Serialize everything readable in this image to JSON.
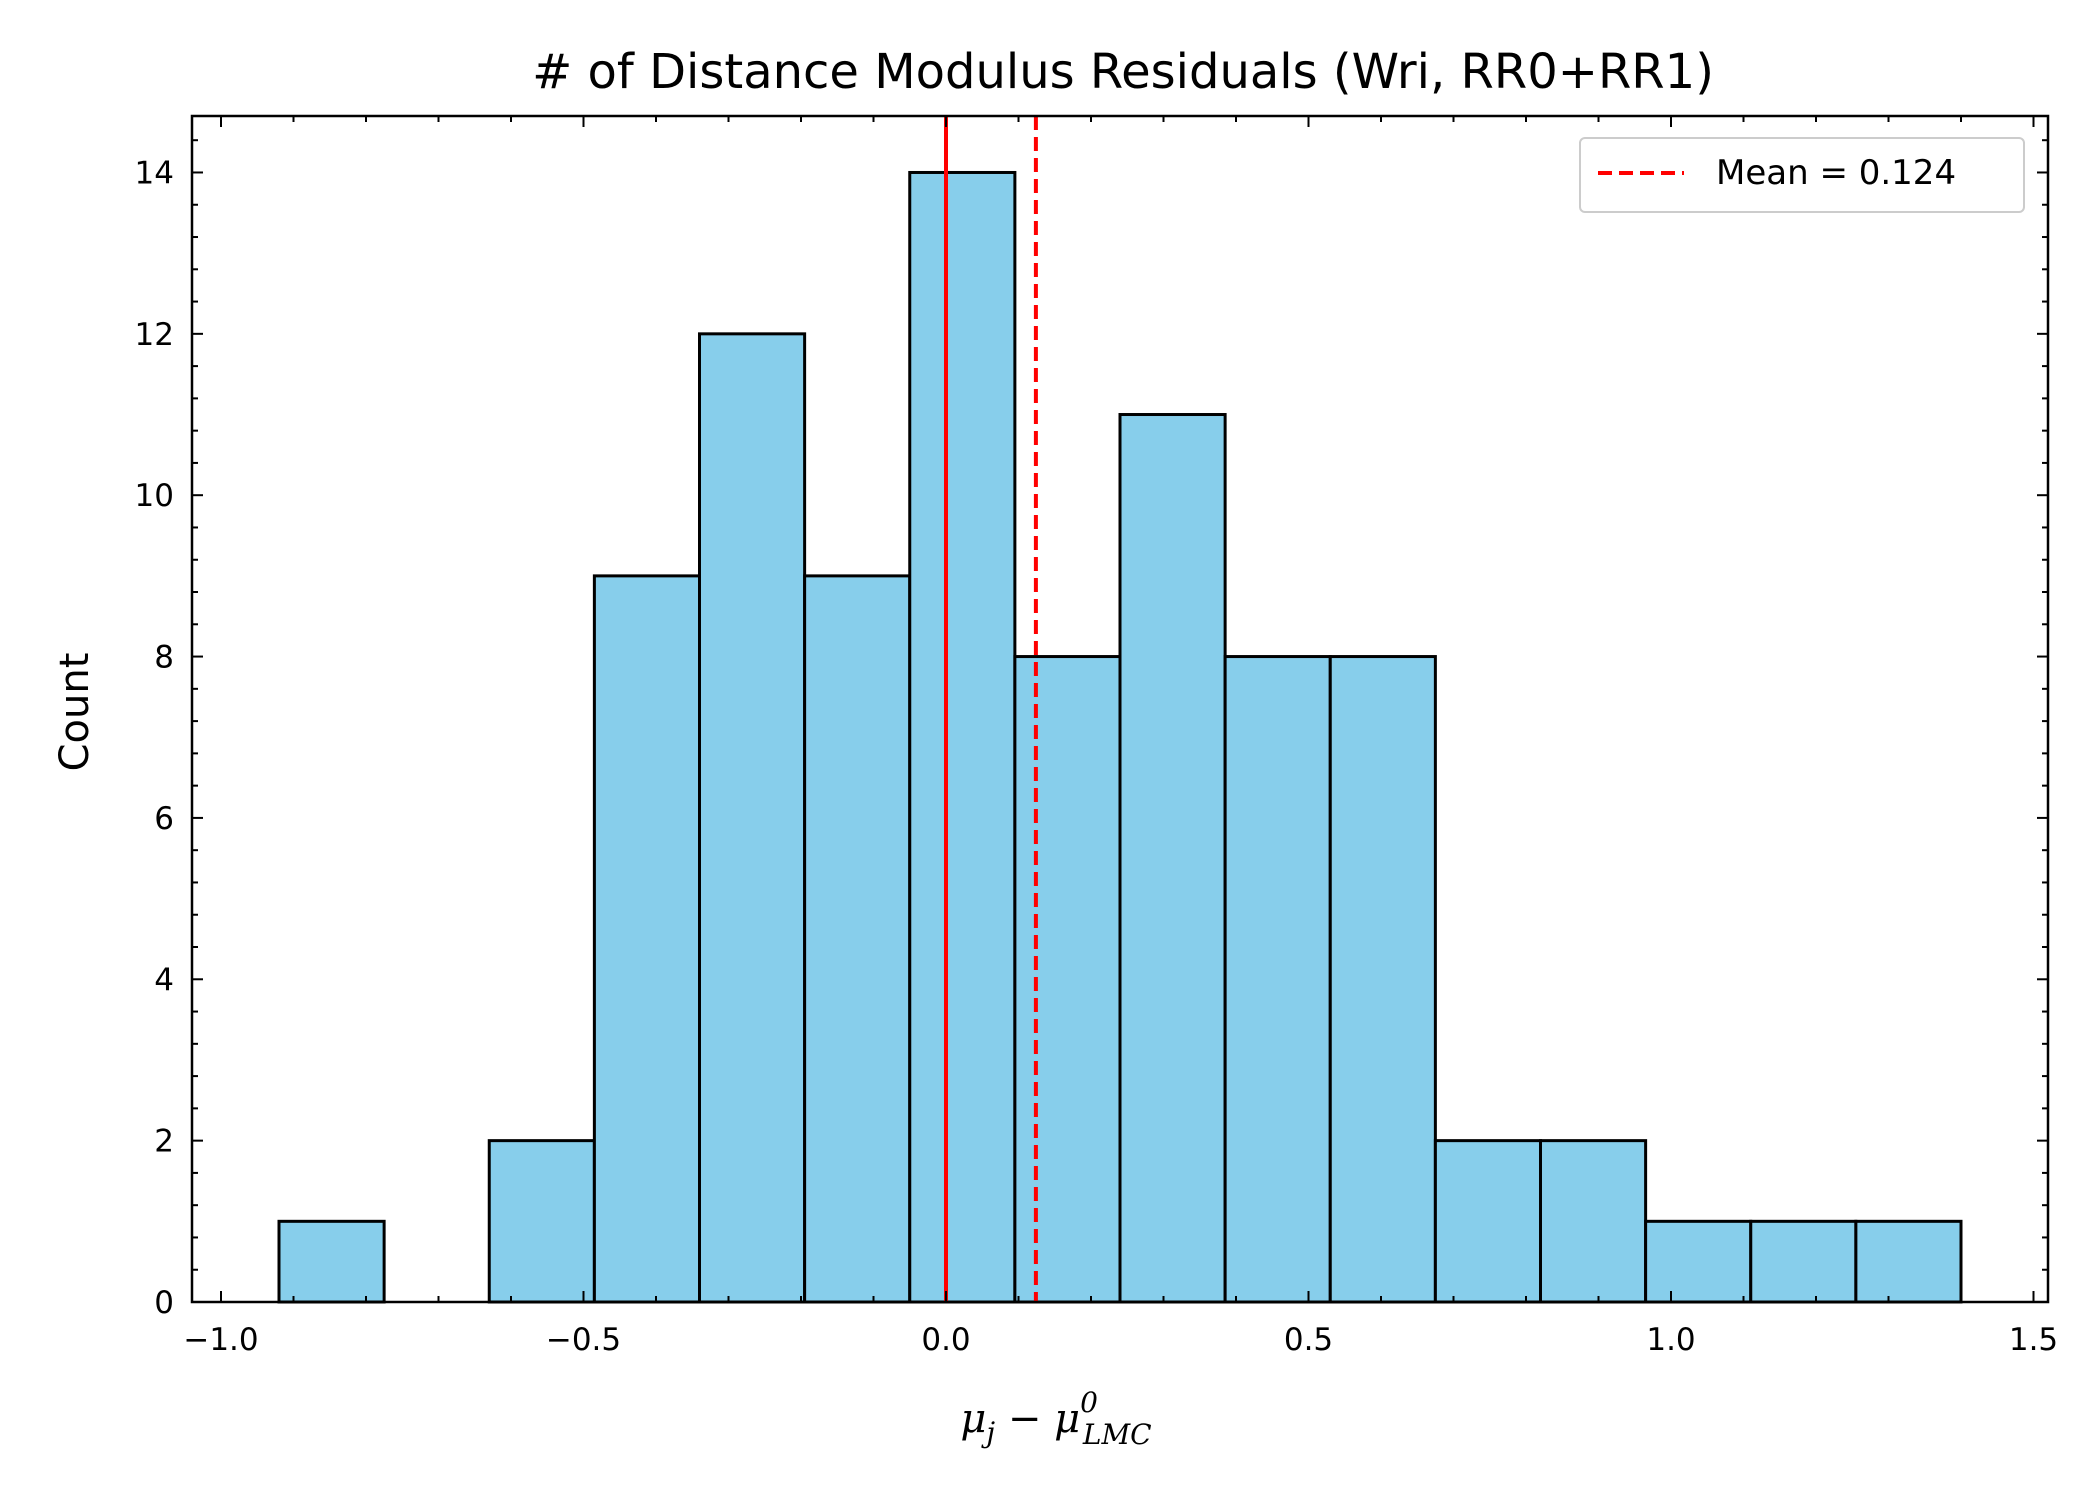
{
  "chart_data": {
    "type": "bar",
    "title": "# of Distance Modulus Residuals (Wri, RR0+RR1)",
    "xlabel": {
      "base1": "μ",
      "sub1": "j",
      "minus": " − ",
      "base2": "μ",
      "sup2": "0",
      "sub2": "LMC"
    },
    "ylabel": "Count",
    "xlim": [
      -1.04,
      1.52
    ],
    "ylim": [
      0,
      14.7
    ],
    "x_ticks": [
      -1.0,
      -0.5,
      0.0,
      0.5,
      1.0,
      1.5
    ],
    "x_tick_labels": [
      "−1.0",
      "−0.5",
      "0.0",
      "0.5",
      "1.0",
      "1.5"
    ],
    "y_ticks": [
      0,
      2,
      4,
      6,
      8,
      10,
      12,
      14
    ],
    "y_tick_labels": [
      "0",
      "2",
      "4",
      "6",
      "8",
      "10",
      "12",
      "14"
    ],
    "bin_edges": [
      -0.92,
      -0.775,
      -0.63,
      -0.485,
      -0.34,
      -0.195,
      -0.05,
      0.095,
      0.24,
      0.385,
      0.53,
      0.675,
      0.82,
      0.965,
      1.11,
      1.255,
      1.4
    ],
    "counts": [
      1,
      0,
      2,
      9,
      12,
      9,
      14,
      8,
      11,
      8,
      8,
      2,
      2,
      1,
      1,
      1
    ],
    "bar_color": "#87ceeb",
    "edge_color": "#000000",
    "reference_line": {
      "x": 0.0,
      "color": "#ff0000",
      "style": "solid"
    },
    "mean_line": {
      "x": 0.124,
      "color": "#ff0000",
      "style": "dashed",
      "label": "Mean = 0.124"
    },
    "legend_position": "top-right",
    "grid": false
  }
}
